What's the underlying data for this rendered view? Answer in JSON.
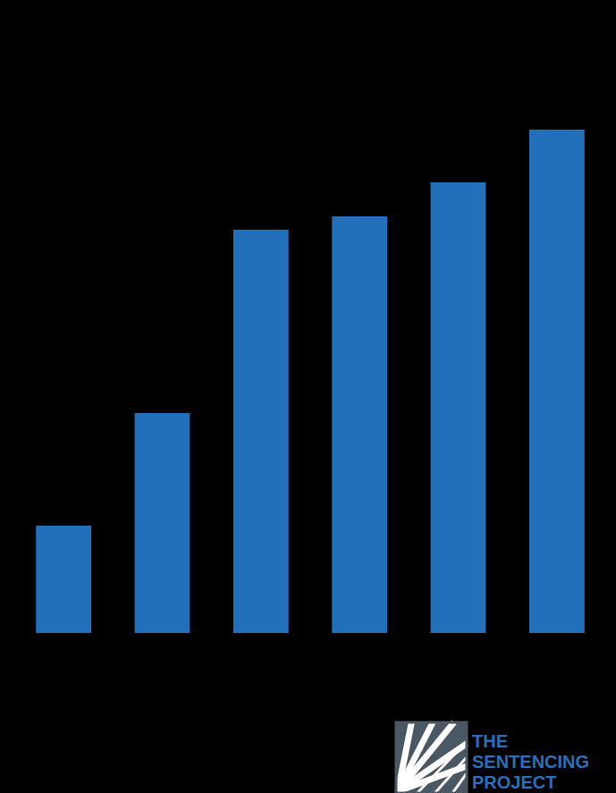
{
  "chart_data": {
    "type": "bar",
    "categories": [
      null,
      null,
      null,
      null,
      null,
      null
    ],
    "values": [
      120,
      246,
      451,
      466,
      504,
      563
    ],
    "color": "#2270b9",
    "ylim": [
      0,
      600
    ],
    "yticks": [],
    "grid": false,
    "tick_labels": false,
    "annotations": [
      "THE SENTENCING PROJECT"
    ]
  }
}
